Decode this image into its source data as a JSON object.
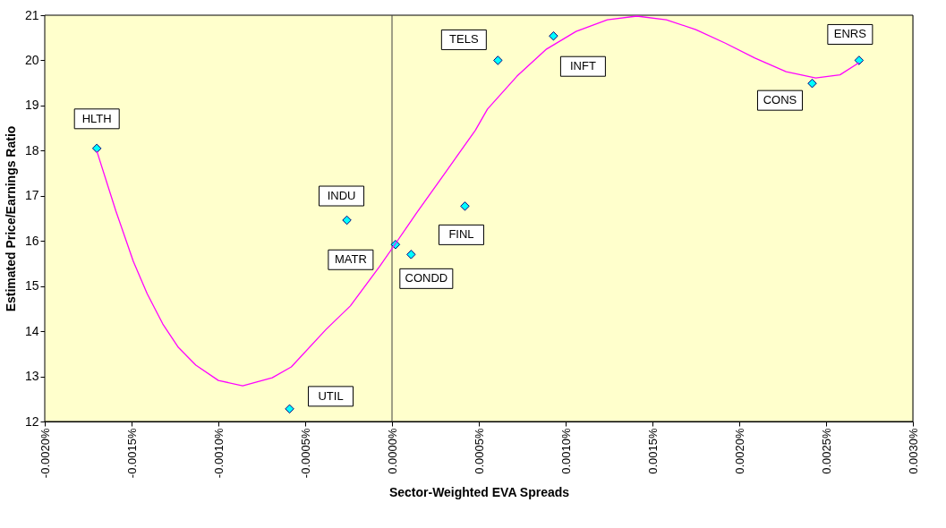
{
  "chart_data": {
    "type": "scatter",
    "xlabel": "Sector-Weighted EVA Spreads",
    "ylabel": "Estimated Price/Earnings Ratio",
    "xlim": [
      -0.002,
      0.003
    ],
    "ylim": [
      12,
      21
    ],
    "xticks": [
      {
        "value": -0.002,
        "label": "-0.0020%"
      },
      {
        "value": -0.0015,
        "label": "-0.0015%"
      },
      {
        "value": -0.001,
        "label": "-0.0010%"
      },
      {
        "value": -0.0005,
        "label": "-0.0005%"
      },
      {
        "value": 0,
        "label": "0.0000%"
      },
      {
        "value": 0.0005,
        "label": "0.0005%"
      },
      {
        "value": 0.001,
        "label": "0.0010%"
      },
      {
        "value": 0.0015,
        "label": "0.0015%"
      },
      {
        "value": 0.002,
        "label": "0.0020%"
      },
      {
        "value": 0.0025,
        "label": "0.0025%"
      },
      {
        "value": 0.003,
        "label": "0.0030%"
      }
    ],
    "yticks": [
      12,
      13,
      14,
      15,
      16,
      17,
      18,
      19,
      20,
      21
    ],
    "ref_lines": [
      {
        "axis": "x",
        "value": 0,
        "color": "#404040"
      }
    ],
    "series": [
      {
        "marker": "diamond",
        "color": "#00ffff",
        "x": [
          -0.0017,
          -0.00026,
          2e-05,
          0.00011,
          0.00042,
          -0.00059,
          0.00061,
          0.00093,
          0.00242,
          0.00269
        ],
        "values": [
          18.05,
          16.46,
          15.92,
          15.7,
          16.77,
          12.28,
          20.0,
          20.54,
          19.49,
          20.0
        ]
      },
      {
        "type": "line",
        "marker": "none",
        "line_style": "solid",
        "color": "#ff00ff",
        "x": [
          -0.0017,
          -0.00159,
          -0.00149,
          -0.00141,
          -0.00132,
          -0.00123,
          -0.00113,
          -0.001,
          -0.00086,
          -0.00069,
          -0.00058,
          -0.00038,
          -0.00024,
          -7e-05,
          2e-05,
          0.00014,
          0.00031,
          0.00048,
          0.00055,
          0.00072,
          0.00089,
          0.00106,
          0.00124,
          0.00141,
          0.00158,
          0.00175,
          0.00192,
          0.00209,
          0.00227,
          0.00244,
          0.00258,
          0.00269
        ],
        "values": [
          17.99,
          16.66,
          15.55,
          14.83,
          14.16,
          13.64,
          13.25,
          12.91,
          12.79,
          12.97,
          13.21,
          14.04,
          14.56,
          15.44,
          15.94,
          16.61,
          17.53,
          18.45,
          18.92,
          19.65,
          20.25,
          20.64,
          20.9,
          20.98,
          20.9,
          20.68,
          20.38,
          20.05,
          19.75,
          19.61,
          19.68,
          19.95
        ]
      }
    ],
    "annotations": [
      {
        "text": "HLTH",
        "x": -0.0017,
        "y": 18.05
      },
      {
        "text": "INDU",
        "x": -0.00026,
        "y": 16.46
      },
      {
        "text": "MATR",
        "x": 2e-05,
        "y": 15.92
      },
      {
        "text": "CONDD",
        "x": 0.00011,
        "y": 15.7
      },
      {
        "text": "FINL",
        "x": 0.00042,
        "y": 16.77
      },
      {
        "text": "UTIL",
        "x": -0.00059,
        "y": 12.28
      },
      {
        "text": "TELS",
        "x": 0.00061,
        "y": 20.0
      },
      {
        "text": "INFT",
        "x": 0.00093,
        "y": 20.54
      },
      {
        "text": "CONS",
        "x": 0.00242,
        "y": 19.49
      },
      {
        "text": "ENRS",
        "x": 0.00269,
        "y": 20.0
      }
    ]
  }
}
